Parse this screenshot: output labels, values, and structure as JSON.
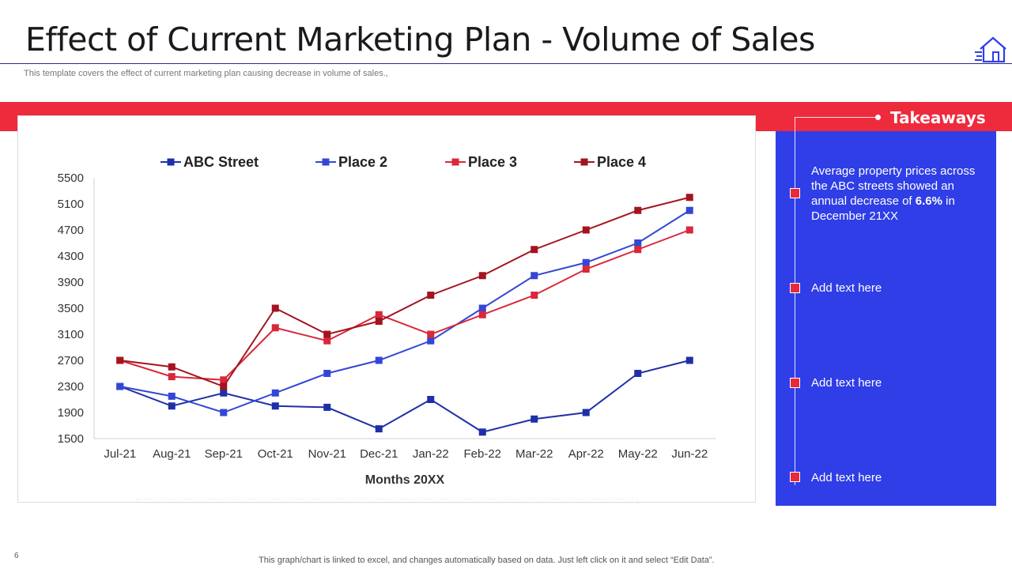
{
  "header": {
    "title": "Effect of Current Marketing Plan - Volume of Sales",
    "subtitle": "This template covers the effect of current marketing plan causing decrease in volume of sales.,"
  },
  "takeaways": {
    "heading": "Takeaways",
    "items": [
      {
        "pre": "Average property prices across the ABC streets showed an annual  decrease of ",
        "bold": "6.6%",
        "post": " in December 21XX"
      },
      {
        "pre": "Add text here",
        "bold": "",
        "post": ""
      },
      {
        "pre": "Add text here",
        "bold": "",
        "post": ""
      },
      {
        "pre": "Add text here",
        "bold": "",
        "post": ""
      }
    ]
  },
  "footer": {
    "page_number": "6",
    "note": "This graph/chart is linked to excel,  and changes automatically based on data. Just left click on it and select “Edit Data”."
  },
  "colors": {
    "accent_red": "#ee2a3d",
    "panel_blue": "#2f3ee6"
  },
  "chart_data": {
    "type": "line",
    "title": "",
    "xlabel": "Months 20XX",
    "ylabel": "",
    "categories": [
      "Jul-21",
      "Aug-21",
      "Sep-21",
      "Oct-21",
      "Nov-21",
      "Dec-21",
      "Jan-22",
      "Feb-22",
      "Mar-22",
      "Apr-22",
      "May-22",
      "Jun-22"
    ],
    "y_ticks": [
      1500,
      1900,
      2300,
      2700,
      3100,
      3500,
      3900,
      4300,
      4700,
      5100,
      5500
    ],
    "ylim": [
      1500,
      5500
    ],
    "legend_position": "top",
    "series": [
      {
        "name": "ABC Street",
        "color": "#1f2fa8",
        "values": [
          2300,
          2000,
          2200,
          2000,
          1980,
          1650,
          2100,
          1600,
          1800,
          1900,
          2500,
          2700
        ]
      },
      {
        "name": "Place 2",
        "color": "#3347d6",
        "values": [
          2300,
          2150,
          1900,
          2200,
          2500,
          2700,
          3000,
          3500,
          4000,
          4200,
          4500,
          5000
        ]
      },
      {
        "name": "Place 3",
        "color": "#d9283a",
        "values": [
          2700,
          2450,
          2400,
          3200,
          3000,
          3400,
          3100,
          3400,
          3700,
          4100,
          4400,
          4700
        ]
      },
      {
        "name": "Place 4",
        "color": "#a3141f",
        "values": [
          2700,
          2600,
          2300,
          3500,
          3100,
          3300,
          3700,
          4000,
          4400,
          4700,
          5000,
          5200
        ]
      }
    ]
  }
}
